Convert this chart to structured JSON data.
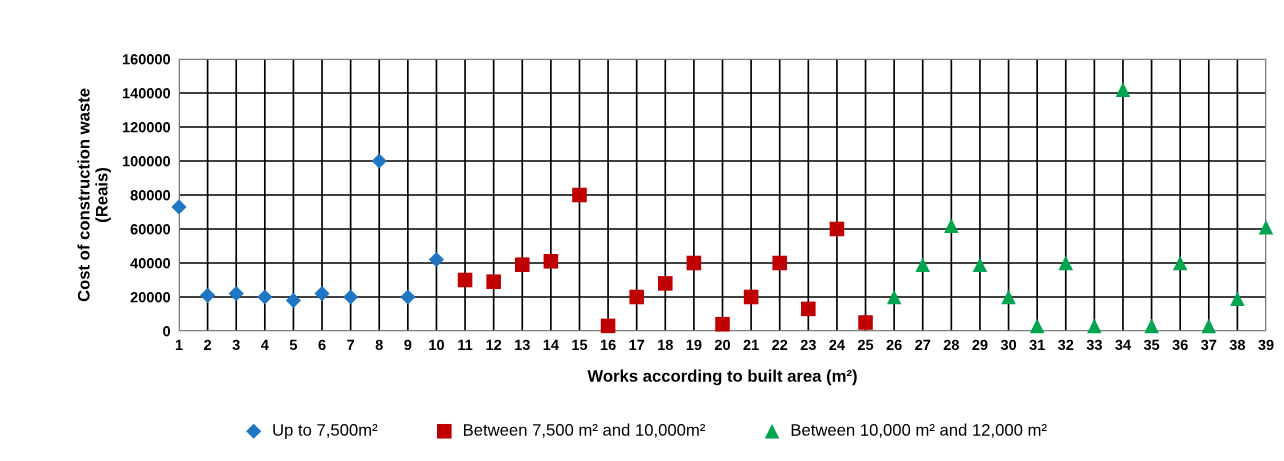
{
  "chart_data": {
    "type": "scatter",
    "xlabel": "Works according to built area (m²)",
    "ylabel": "Cost of construction waste\n(Reais)",
    "xlim": [
      1,
      39
    ],
    "xticks": [
      1,
      2,
      3,
      4,
      5,
      6,
      7,
      8,
      9,
      10,
      11,
      12,
      13,
      14,
      15,
      16,
      17,
      18,
      19,
      20,
      21,
      22,
      23,
      24,
      25,
      26,
      27,
      28,
      29,
      30,
      31,
      32,
      33,
      34,
      35,
      36,
      37,
      38,
      39
    ],
    "ylim": [
      0,
      160000
    ],
    "yticks": [
      0,
      20000,
      40000,
      60000,
      80000,
      100000,
      120000,
      140000,
      160000
    ],
    "grid": true,
    "legend": "bottom",
    "series": [
      {
        "name": "Up to 7,500m²",
        "color": "#1f77c4",
        "marker": "diamond",
        "x": [
          1,
          2,
          3,
          4,
          5,
          6,
          7,
          8,
          9,
          10
        ],
        "values": [
          73000,
          21000,
          22000,
          20000,
          18000,
          22000,
          20000,
          100000,
          20000,
          42000
        ]
      },
      {
        "name": "Between 7,500 m² and 10,000m²",
        "color": "#c00000",
        "marker": "square",
        "x": [
          11,
          12,
          13,
          14,
          15,
          16,
          17,
          18,
          19,
          20,
          21,
          22,
          23,
          24,
          25
        ],
        "values": [
          30000,
          29000,
          39000,
          41000,
          80000,
          3000,
          20000,
          28000,
          40000,
          4000,
          20000,
          40000,
          13000,
          60000,
          5000
        ]
      },
      {
        "name": "Between 10,000 m² and 12,000 m²",
        "color": "#00a550",
        "marker": "triangle",
        "x": [
          26,
          27,
          28,
          29,
          30,
          31,
          32,
          33,
          34,
          35,
          36,
          37,
          38,
          39
        ],
        "values": [
          20000,
          39000,
          62000,
          39000,
          20000,
          3000,
          40000,
          3000,
          142000,
          3000,
          40000,
          3000,
          19000,
          61000
        ]
      }
    ]
  }
}
